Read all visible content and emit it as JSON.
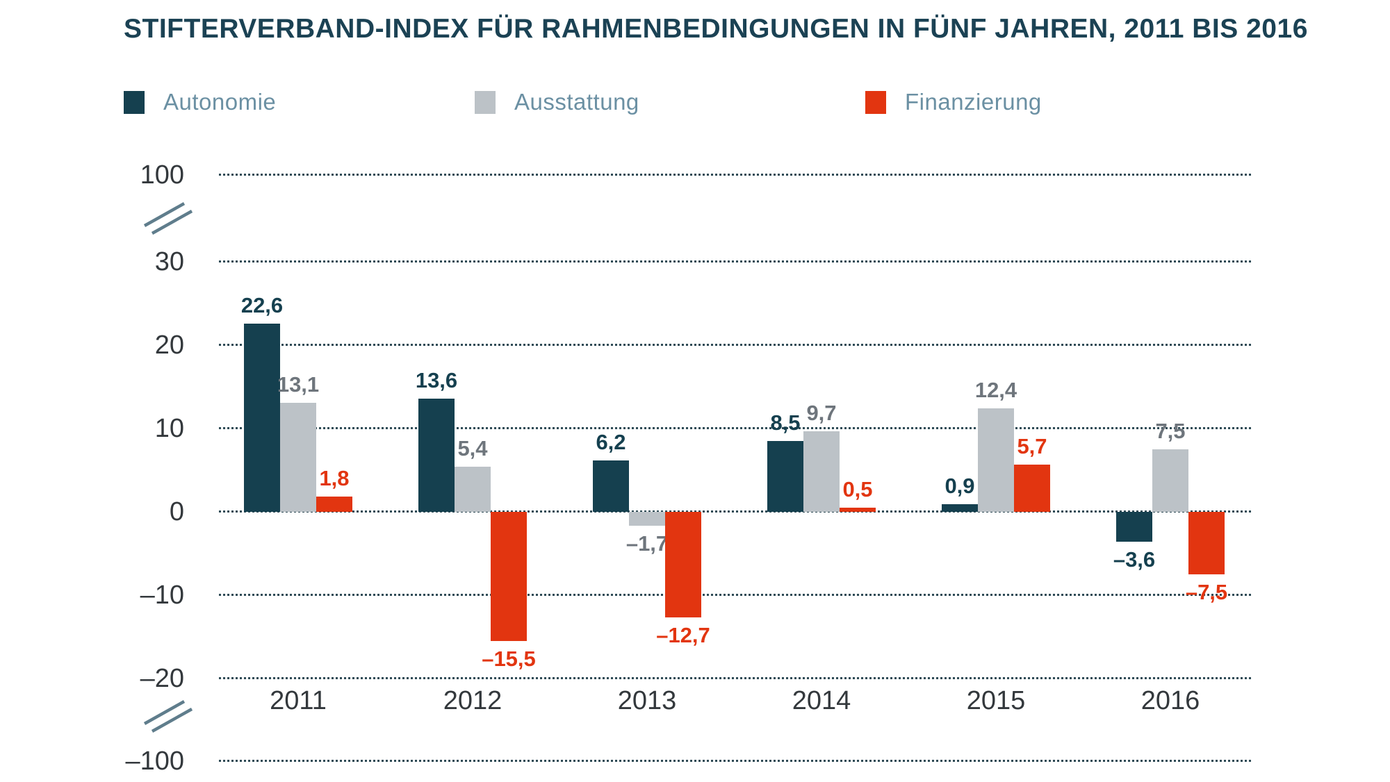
{
  "title": "STIFTERVERBAND-INDEX FÜR RAHMENBEDINGUNGEN IN FÜNF JAHREN, 2011 BIS 2016",
  "colors": {
    "autonomie": "#15404f",
    "ausstattung": "#bcc2c7",
    "finanzierung": "#e23510",
    "title_text": "#1b4254",
    "axis_text": "#33383c",
    "legend_text": "#6b90a3",
    "gray_value_label": "#6e757c",
    "grid_dots": "#2e4a55",
    "axis_break_mark": "#5f7d8c"
  },
  "legend": {
    "items": [
      "Autonomie",
      "Ausstattung",
      "Finanzierung"
    ]
  },
  "chart_data": {
    "type": "bar",
    "title": "STIFTERVERBAND-INDEX FÜR RAHMENBEDINGUNGEN IN FÜNF JAHREN, 2011 BIS 2016",
    "categories": [
      "2011",
      "2012",
      "2013",
      "2014",
      "2015",
      "2016"
    ],
    "series": [
      {
        "name": "Autonomie",
        "color": "#15404f",
        "label_color": "#15404f",
        "values": [
          22.6,
          13.6,
          6.2,
          8.5,
          0.9,
          -3.6
        ],
        "labels": [
          "22,6",
          "13,6",
          "6,2",
          "8,5",
          "0,9",
          "–3,6"
        ]
      },
      {
        "name": "Ausstattung",
        "color": "#bcc2c7",
        "label_color": "#6e757c",
        "values": [
          13.1,
          5.4,
          -1.7,
          9.7,
          12.4,
          7.5
        ],
        "labels": [
          "13,1",
          "5,4",
          "–1,7",
          "9,7",
          "12,4",
          "7,5"
        ]
      },
      {
        "name": "Finanzierung",
        "color": "#e23510",
        "label_color": "#e23510",
        "values": [
          1.8,
          -15.5,
          -12.7,
          0.5,
          5.7,
          -7.5
        ],
        "labels": [
          "1,8",
          "–15,5",
          "–12,7",
          "0,5",
          "5,7",
          "–7,5"
        ]
      }
    ],
    "y_axis": {
      "tick_labels": [
        "100",
        "30",
        "20",
        "10",
        "0",
        "–10",
        "–20",
        "–100"
      ],
      "tick_values": [
        100,
        30,
        20,
        10,
        0,
        -10,
        -20,
        -100
      ],
      "broken_axis": true,
      "breaks": [
        [
          30,
          100
        ],
        [
          -100,
          -20
        ]
      ]
    },
    "xlabel": "",
    "ylabel": "",
    "grid": "dotted horizontal lines",
    "legend_position": "top"
  }
}
